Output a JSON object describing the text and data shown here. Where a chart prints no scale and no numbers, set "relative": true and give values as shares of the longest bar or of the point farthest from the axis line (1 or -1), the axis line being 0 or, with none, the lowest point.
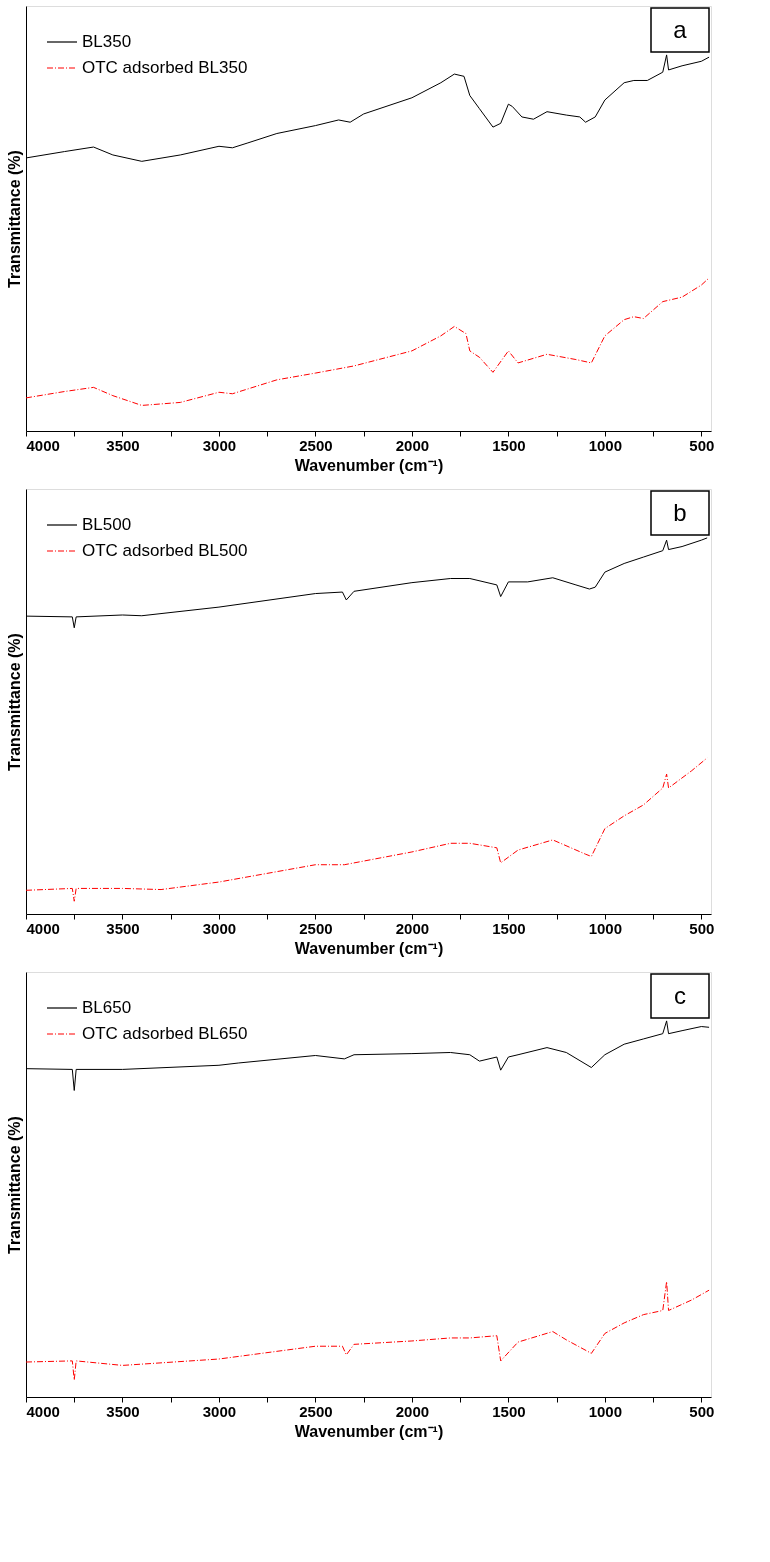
{
  "chart_data": [
    {
      "type": "line",
      "relative": true,
      "xlabel": "Wavenumber (cm⁻¹)",
      "ylabel": "Transmittance (%)",
      "annotations": [
        "a"
      ],
      "xlim": [
        4000,
        450
      ],
      "xticks": [
        4000,
        {
          "value": 3750,
          "label": null
        },
        3500,
        {
          "value": 3250,
          "label": null
        },
        3000,
        {
          "value": 2750,
          "label": null
        },
        2500,
        {
          "value": 2250,
          "label": null
        },
        2000,
        {
          "value": 1750,
          "label": null
        },
        1500,
        {
          "value": 1250,
          "label": null
        },
        1000,
        {
          "value": 750,
          "label": null
        },
        500
      ],
      "tick_labels": "x",
      "grid": false,
      "legend": "top left",
      "series": [
        {
          "name": "BL350",
          "color": "#000000",
          "line_style": "solid",
          "x": [
            4000,
            3800,
            3650,
            3550,
            3400,
            3200,
            3000,
            2930,
            2850,
            2700,
            2500,
            2380,
            2320,
            2250,
            2000,
            1850,
            1780,
            1730,
            1700,
            1650,
            1580,
            1540,
            1500,
            1480,
            1430,
            1370,
            1300,
            1200,
            1130,
            1100,
            1050,
            1000,
            900,
            850,
            780,
            700,
            680,
            670,
            600,
            500,
            460
          ],
          "values": [
            0.726,
            0.743,
            0.755,
            0.734,
            0.717,
            0.734,
            0.757,
            0.753,
            0.766,
            0.791,
            0.812,
            0.827,
            0.821,
            0.843,
            0.886,
            0.926,
            0.949,
            0.943,
            0.892,
            0.857,
            0.808,
            0.818,
            0.869,
            0.863,
            0.835,
            0.829,
            0.849,
            0.84,
            0.835,
            0.821,
            0.835,
            0.88,
            0.926,
            0.932,
            0.932,
            0.954,
            1,
            0.96,
            0.971,
            0.983,
            0.994
          ]
        },
        {
          "name": "OTC adsorbed BL350",
          "color": "#ff0000",
          "line_style": "dashed",
          "x": [
            4000,
            3800,
            3650,
            3550,
            3400,
            3200,
            3000,
            2930,
            2700,
            2500,
            2300,
            2000,
            1850,
            1780,
            1720,
            1700,
            1650,
            1580,
            1500,
            1450,
            1300,
            1150,
            1070,
            1000,
            900,
            850,
            800,
            700,
            600,
            500,
            460
          ],
          "values": [
            0.088,
            0.105,
            0.116,
            0.094,
            0.068,
            0.076,
            0.103,
            0.099,
            0.136,
            0.154,
            0.173,
            0.213,
            0.253,
            0.278,
            0.259,
            0.213,
            0.196,
            0.156,
            0.213,
            0.181,
            0.204,
            0.19,
            0.181,
            0.253,
            0.296,
            0.304,
            0.299,
            0.344,
            0.356,
            0.388,
            0.407
          ]
        }
      ]
    },
    {
      "type": "line",
      "relative": true,
      "xlabel": "Wavenumber (cm⁻¹)",
      "ylabel": "Transmittance (%)",
      "annotations": [
        "b"
      ],
      "xlim": [
        4000,
        450
      ],
      "xticks": [
        4000,
        {
          "value": 3750,
          "label": null
        },
        3500,
        {
          "value": 3250,
          "label": null
        },
        3000,
        {
          "value": 2750,
          "label": null
        },
        2500,
        {
          "value": 2250,
          "label": null
        },
        2000,
        {
          "value": 1750,
          "label": null
        },
        1500,
        {
          "value": 1250,
          "label": null
        },
        1000,
        {
          "value": 750,
          "label": null
        },
        500
      ],
      "tick_labels": "x",
      "grid": false,
      "legend": "top left",
      "series": [
        {
          "name": "BL500",
          "color": "#000000",
          "line_style": "solid",
          "x": [
            4000,
            3760,
            3750,
            3740,
            3500,
            3400,
            3000,
            2500,
            2360,
            2340,
            2300,
            2000,
            1800,
            1700,
            1560,
            1540,
            1500,
            1400,
            1270,
            1150,
            1080,
            1050,
            1000,
            900,
            800,
            700,
            680,
            670,
            600,
            500,
            470
          ],
          "values": [
            0.792,
            0.79,
            0.761,
            0.79,
            0.795,
            0.793,
            0.816,
            0.852,
            0.856,
            0.835,
            0.858,
            0.881,
            0.892,
            0.892,
            0.875,
            0.844,
            0.883,
            0.883,
            0.894,
            0.875,
            0.864,
            0.869,
            0.909,
            0.932,
            0.949,
            0.966,
            0.994,
            0.969,
            0.977,
            0.994,
            1
          ]
        },
        {
          "name": "OTC adsorbed BL500",
          "color": "#ff0000",
          "line_style": "dashed",
          "x": [
            4000,
            3760,
            3750,
            3740,
            3500,
            3300,
            3000,
            2500,
            2350,
            2000,
            1800,
            1700,
            1560,
            1540,
            1450,
            1270,
            1100,
            1070,
            1000,
            900,
            800,
            700,
            680,
            670,
            550,
            470
          ],
          "values": [
            0.063,
            0.068,
            0.034,
            0.068,
            0.068,
            0.065,
            0.085,
            0.131,
            0.131,
            0.165,
            0.188,
            0.188,
            0.176,
            0.136,
            0.17,
            0.197,
            0.159,
            0.153,
            0.227,
            0.261,
            0.29,
            0.335,
            0.372,
            0.335,
            0.381,
            0.415
          ]
        }
      ]
    },
    {
      "type": "line",
      "relative": true,
      "xlabel": "Wavenumber (cm⁻¹)",
      "ylabel": "Transmittance (%)",
      "annotations": [
        "c"
      ],
      "xlim": [
        4000,
        450
      ],
      "xticks": [
        4000,
        {
          "value": 3750,
          "label": null
        },
        3500,
        {
          "value": 3250,
          "label": null
        },
        3000,
        {
          "value": 2750,
          "label": null
        },
        2500,
        {
          "value": 2250,
          "label": null
        },
        2000,
        {
          "value": 1750,
          "label": null
        },
        1500,
        {
          "value": 1250,
          "label": null
        },
        1000,
        {
          "value": 750,
          "label": null
        },
        500
      ],
      "tick_labels": "x",
      "grid": false,
      "legend": "top left",
      "series": [
        {
          "name": "BL650",
          "color": "#000000",
          "line_style": "solid",
          "x": [
            4000,
            3760,
            3750,
            3740,
            3500,
            3000,
            2900,
            2500,
            2350,
            2300,
            2000,
            1800,
            1700,
            1650,
            1560,
            1540,
            1500,
            1450,
            1300,
            1200,
            1070,
            1000,
            900,
            800,
            700,
            680,
            670,
            600,
            500,
            460
          ],
          "values": [
            0.873,
            0.871,
            0.815,
            0.871,
            0.871,
            0.882,
            0.888,
            0.908,
            0.899,
            0.91,
            0.913,
            0.916,
            0.91,
            0.893,
            0.904,
            0.869,
            0.904,
            0.91,
            0.929,
            0.916,
            0.876,
            0.91,
            0.938,
            0.952,
            0.966,
            1,
            0.966,
            0.974,
            0.985,
            0.983
          ]
        },
        {
          "name": "OTC adsorbed BL650",
          "color": "#ff0000",
          "line_style": "dashed",
          "x": [
            4000,
            3760,
            3750,
            3740,
            3500,
            3000,
            2500,
            2360,
            2340,
            2300,
            2000,
            1800,
            1700,
            1560,
            1540,
            1450,
            1270,
            1200,
            1070,
            1000,
            900,
            800,
            700,
            680,
            670,
            550,
            460
          ],
          "values": [
            0.093,
            0.096,
            0.045,
            0.096,
            0.084,
            0.101,
            0.135,
            0.135,
            0.112,
            0.14,
            0.149,
            0.157,
            0.157,
            0.163,
            0.096,
            0.146,
            0.174,
            0.152,
            0.116,
            0.169,
            0.197,
            0.219,
            0.23,
            0.307,
            0.23,
            0.258,
            0.284
          ]
        }
      ]
    }
  ]
}
